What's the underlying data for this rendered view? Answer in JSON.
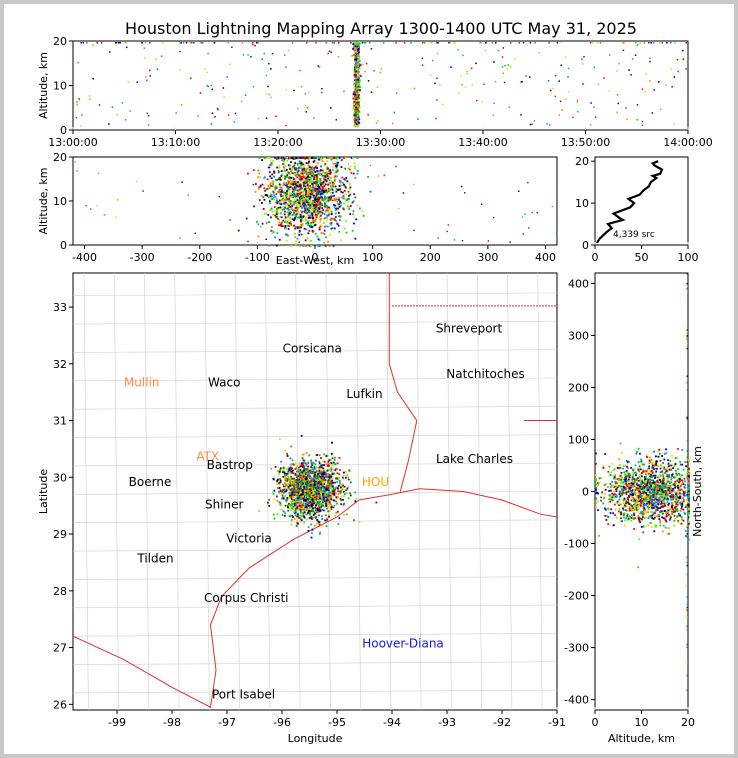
{
  "chart_data": [
    {
      "panel": "time-altitude",
      "type": "scatter",
      "title": "Houston Lightning Mapping Array 1300-1400 UTC May 31, 2025",
      "ylabel": "Altitude, km",
      "xlim": [
        "13:00:00",
        "14:00:00"
      ],
      "ylim": [
        0,
        20
      ],
      "xticks": [
        "13:00:00",
        "13:10:00",
        "13:20:00",
        "13:30:00",
        "13:40:00",
        "13:50:00",
        "14:00:00"
      ],
      "yticks": [
        0,
        10,
        20
      ],
      "cluster_time_minutes": 27.6,
      "cluster_altitude_km": [
        1,
        20
      ]
    },
    {
      "panel": "east-west-altitude",
      "type": "scatter",
      "xlabel": "East-West, km",
      "ylabel": "Altitude, km",
      "xlim": [
        -420,
        420
      ],
      "ylim": [
        0,
        20
      ],
      "xticks": [
        -400,
        -300,
        -200,
        -100,
        0,
        100,
        200,
        300,
        400
      ],
      "yticks": [
        0,
        10,
        20
      ],
      "cluster_east_west_km": [
        -120,
        90
      ],
      "cluster_altitude_km": [
        0,
        20
      ]
    },
    {
      "panel": "altitude-histogram",
      "type": "line",
      "xlim": [
        0,
        100
      ],
      "ylim": [
        0,
        21
      ],
      "xticks": [
        0,
        50,
        100
      ],
      "yticks": [
        0,
        10,
        20
      ],
      "annotation": "4,339 src",
      "x": [
        2,
        5,
        12,
        18,
        14,
        30,
        26,
        20,
        38,
        42,
        36,
        48,
        52,
        58,
        60,
        66,
        62,
        70,
        72,
        68,
        64,
        62,
        68
      ],
      "y": [
        0.5,
        1.5,
        3,
        4,
        5,
        6,
        6.5,
        7.5,
        9,
        10,
        11,
        12,
        13,
        14,
        15,
        16,
        16.5,
        17,
        18,
        18.5,
        19,
        19.5,
        20
      ]
    },
    {
      "panel": "plan-map",
      "type": "scatter",
      "xlabel": "Longitude",
      "ylabel": "Latitude",
      "xlim": [
        -99.8,
        -91
      ],
      "ylim": [
        25.9,
        33.6
      ],
      "xticks": [
        -99,
        -98,
        -97,
        -96,
        -95,
        -94,
        -93,
        -92,
        -91
      ],
      "yticks": [
        26,
        27,
        28,
        29,
        30,
        31,
        32,
        33
      ],
      "cluster_center": [
        -95.5,
        29.8
      ],
      "place_labels": [
        {
          "name": "Shreveport",
          "lon": -92.6,
          "lat": 32.55,
          "color": "#000000"
        },
        {
          "name": "Corsicana",
          "lon": -95.45,
          "lat": 32.2,
          "color": "#000000"
        },
        {
          "name": "Natchitoches",
          "lon": -92.3,
          "lat": 31.75,
          "color": "#000000"
        },
        {
          "name": "Mullin",
          "lon": -98.55,
          "lat": 31.6,
          "color": "#ff8a40"
        },
        {
          "name": "Waco",
          "lon": -97.05,
          "lat": 31.6,
          "color": "#000000"
        },
        {
          "name": "Lufkin",
          "lon": -94.5,
          "lat": 31.4,
          "color": "#000000"
        },
        {
          "name": "ATX",
          "lon": -97.35,
          "lat": 30.3,
          "color": "#ff8a40"
        },
        {
          "name": "Bastrop",
          "lon": -96.95,
          "lat": 30.15,
          "color": "#000000"
        },
        {
          "name": "Lake Charles",
          "lon": -92.5,
          "lat": 30.25,
          "color": "#000000"
        },
        {
          "name": "Boerne",
          "lon": -98.4,
          "lat": 29.85,
          "color": "#000000"
        },
        {
          "name": "HOU",
          "lon": -94.3,
          "lat": 29.85,
          "color": "#ffa000"
        },
        {
          "name": "Shiner",
          "lon": -97.05,
          "lat": 29.45,
          "color": "#000000"
        },
        {
          "name": "Victoria",
          "lon": -96.6,
          "lat": 28.85,
          "color": "#000000"
        },
        {
          "name": "Tilden",
          "lon": -98.3,
          "lat": 28.5,
          "color": "#000000"
        },
        {
          "name": "Corpus Christi",
          "lon": -96.65,
          "lat": 27.8,
          "color": "#000000"
        },
        {
          "name": "Hoover-Diana",
          "lon": -93.8,
          "lat": 27.0,
          "color": "#1414ff"
        },
        {
          "name": "Port Isabel",
          "lon": -96.7,
          "lat": 26.1,
          "color": "#000000"
        }
      ]
    },
    {
      "panel": "altitude-north-south",
      "type": "scatter",
      "xlabel": "Altitude, km",
      "ylabel": "North-South, km",
      "xlim": [
        0,
        20
      ],
      "ylim": [
        -420,
        420
      ],
      "xticks": [
        0,
        10,
        20
      ],
      "yticks": [
        -400,
        -300,
        -200,
        -100,
        0,
        100,
        200,
        300,
        400
      ],
      "cluster_north_south_km": [
        -100,
        100
      ]
    }
  ]
}
